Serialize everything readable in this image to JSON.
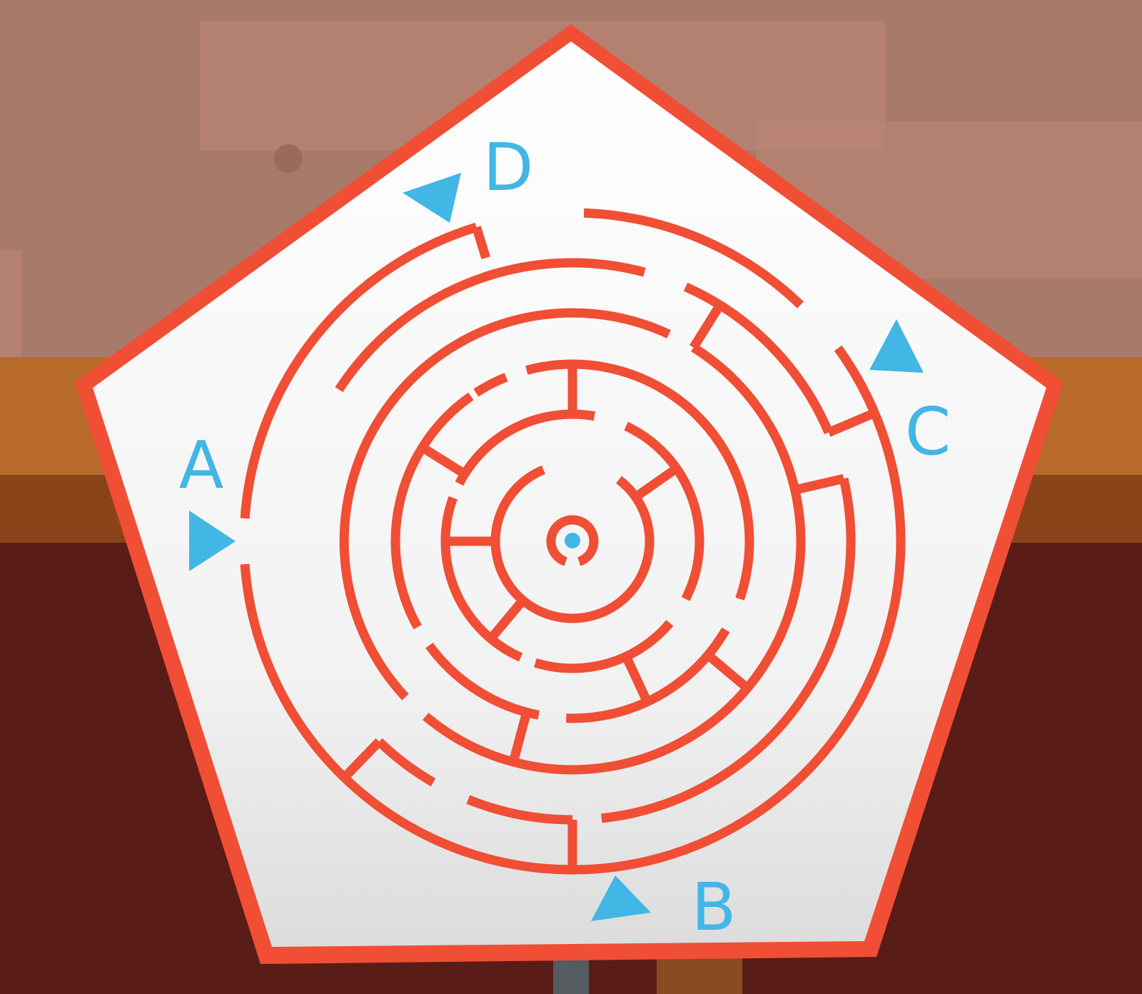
{
  "scene": {
    "wall_color": "#a87a6a",
    "board_color": "#f4f4f4",
    "border_color": "#f04e35",
    "shelf_color": "#b76a2a",
    "floor_color": "#5a1c16"
  },
  "maze": {
    "wall_color": "#f04e35",
    "goal_color": "#42b6e4",
    "entrances": [
      {
        "label": "A",
        "arrow": "right"
      },
      {
        "label": "B",
        "arrow": "up-right"
      },
      {
        "label": "C",
        "arrow": "up"
      },
      {
        "label": "D",
        "arrow": "down-left"
      }
    ]
  }
}
